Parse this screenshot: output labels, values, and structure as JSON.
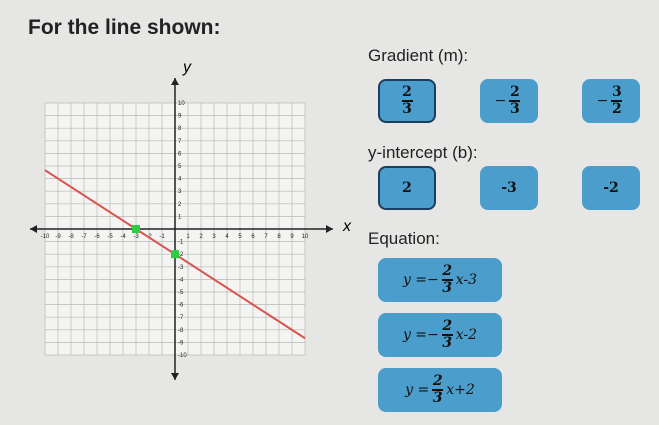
{
  "title": "For the line shown:",
  "graph": {
    "x_label": "x",
    "y_label": "y",
    "xlim": [
      -10,
      10
    ],
    "ylim": [
      -10,
      10
    ],
    "xticks": [
      -10,
      -9,
      -8,
      -7,
      -6,
      -5,
      -4,
      -3,
      -2,
      -1,
      1,
      2,
      3,
      4,
      5,
      6,
      7,
      8,
      9,
      10
    ],
    "yticks": [
      -10,
      -9,
      -8,
      -7,
      -6,
      -5,
      -4,
      -3,
      -2,
      -1,
      1,
      2,
      3,
      4,
      5,
      6,
      7,
      8,
      9,
      10
    ],
    "grid": true,
    "line": {
      "color": "#d9534f",
      "x": [
        -10,
        10
      ],
      "y": [
        4.67,
        -8.67
      ]
    },
    "points": {
      "color": "#2ecc40",
      "x": [
        -3,
        0
      ],
      "y": [
        0,
        -2
      ]
    }
  },
  "gradient": {
    "label": "Gradient (m):",
    "options": [
      {
        "num": "2",
        "den": "3",
        "selected": true
      },
      {
        "sign": "−",
        "num": "2",
        "den": "3"
      },
      {
        "sign": "−",
        "num": "3",
        "den": "2"
      }
    ]
  },
  "intercept": {
    "label": "y-intercept (b):",
    "options": [
      {
        "text": "2",
        "selected": true
      },
      {
        "text": "-3"
      },
      {
        "text": "-2"
      }
    ]
  },
  "equation": {
    "label": "Equation:",
    "options": [
      {
        "lhs": "y =",
        "sign": "−",
        "num": "2",
        "den": "3",
        "rest": "x-3"
      },
      {
        "lhs": "y =",
        "sign": "−",
        "num": "2",
        "den": "3",
        "rest": "x-2"
      },
      {
        "lhs": "y =",
        "num": "2",
        "den": "3",
        "rest": "x+2"
      }
    ]
  }
}
